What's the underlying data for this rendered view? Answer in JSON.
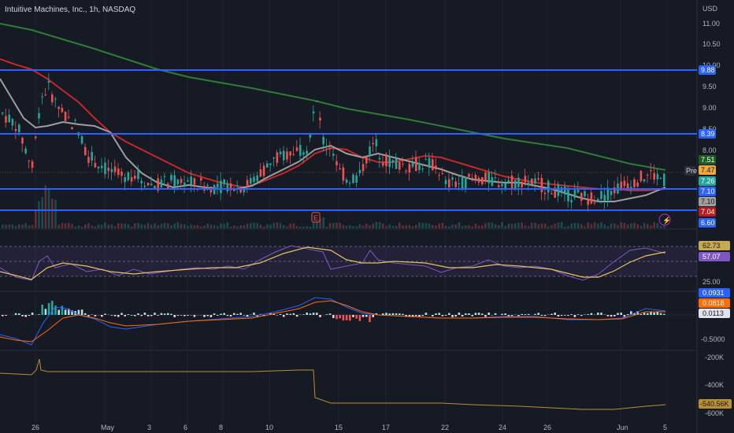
{
  "title": "Intuitive Machines, Inc., 1h, NASDAQ",
  "currency": "USD",
  "price_axis": [
    "11.00",
    "10.50",
    "10.00",
    "9.50",
    "9.00",
    "8.50",
    "8.00",
    "7.51",
    "7.47",
    "7.26",
    "7.10",
    "7.10",
    "7.04",
    "6.60"
  ],
  "price_ticks": [
    "11.00",
    "10.50",
    "10.00",
    "9.50",
    "9.00",
    "8.50",
    "8.00"
  ],
  "price_badges": [
    {
      "text": "9.88",
      "color": "#2962ff"
    },
    {
      "text": "8.39",
      "color": "#2962ff"
    },
    {
      "text": "7.51",
      "color": "#1b5e20"
    },
    {
      "text": "7.47",
      "color": "#f2a93b"
    },
    {
      "text": "7.26",
      "color": "#26a69a"
    },
    {
      "text": "7.10",
      "color": "#2962ff"
    },
    {
      "text": "7.10",
      "color": "#9e9e9e"
    },
    {
      "text": "7.04",
      "color": "#b71c1c"
    },
    {
      "text": "6.60",
      "color": "#2962ff"
    }
  ],
  "pre_label": "Pre",
  "rsi_axis": {
    "top": "62.73",
    "mid": "57.07",
    "bottom": "25.00"
  },
  "macd_axis": {
    "a": "0.0931",
    "b": "0.0818",
    "c": "0.0113",
    "d": "-0.5000"
  },
  "obv_axis": {
    "a": "-200K",
    "b": "-400K",
    "c": "-540.56K",
    "d": "-600K"
  },
  "date_labels": [
    "26",
    "May",
    "3",
    "6",
    "8",
    "10",
    "15",
    "17",
    "22",
    "24",
    "26",
    "Jun",
    "5"
  ],
  "event_markers": [
    "E"
  ],
  "colors": {
    "background": "#161a25",
    "up": "#26a69a",
    "down": "#ef5350",
    "level_line": "#2962ff",
    "ma_green": "#2e7d32",
    "ma_red": "#c62828",
    "ma_gray": "#9e9e9e",
    "rsi": "#7e57c2",
    "rsi_signal": "#e6c35c"
  },
  "chart_data": {
    "type": "candlestick",
    "symbol": "Intuitive Machines, Inc.",
    "timeframe": "1h",
    "exchange": "NASDAQ",
    "horizontal_levels": [
      9.88,
      8.39,
      7.1,
      6.6
    ],
    "last_values": {
      "sma_long": 7.51,
      "pre_market": 7.47,
      "last": 7.26,
      "sma_short": 7.1,
      "sma_mid": 7.04
    },
    "rsi": {
      "value": 57.07,
      "signal": 62.73,
      "ylim": [
        25,
        75
      ]
    },
    "macd": {
      "macd": 0.0931,
      "signal": 0.0818,
      "histogram": 0.0113
    },
    "obv": {
      "last": -540.56,
      "unit": "K"
    },
    "ylim": [
      6.5,
      11.2
    ]
  }
}
